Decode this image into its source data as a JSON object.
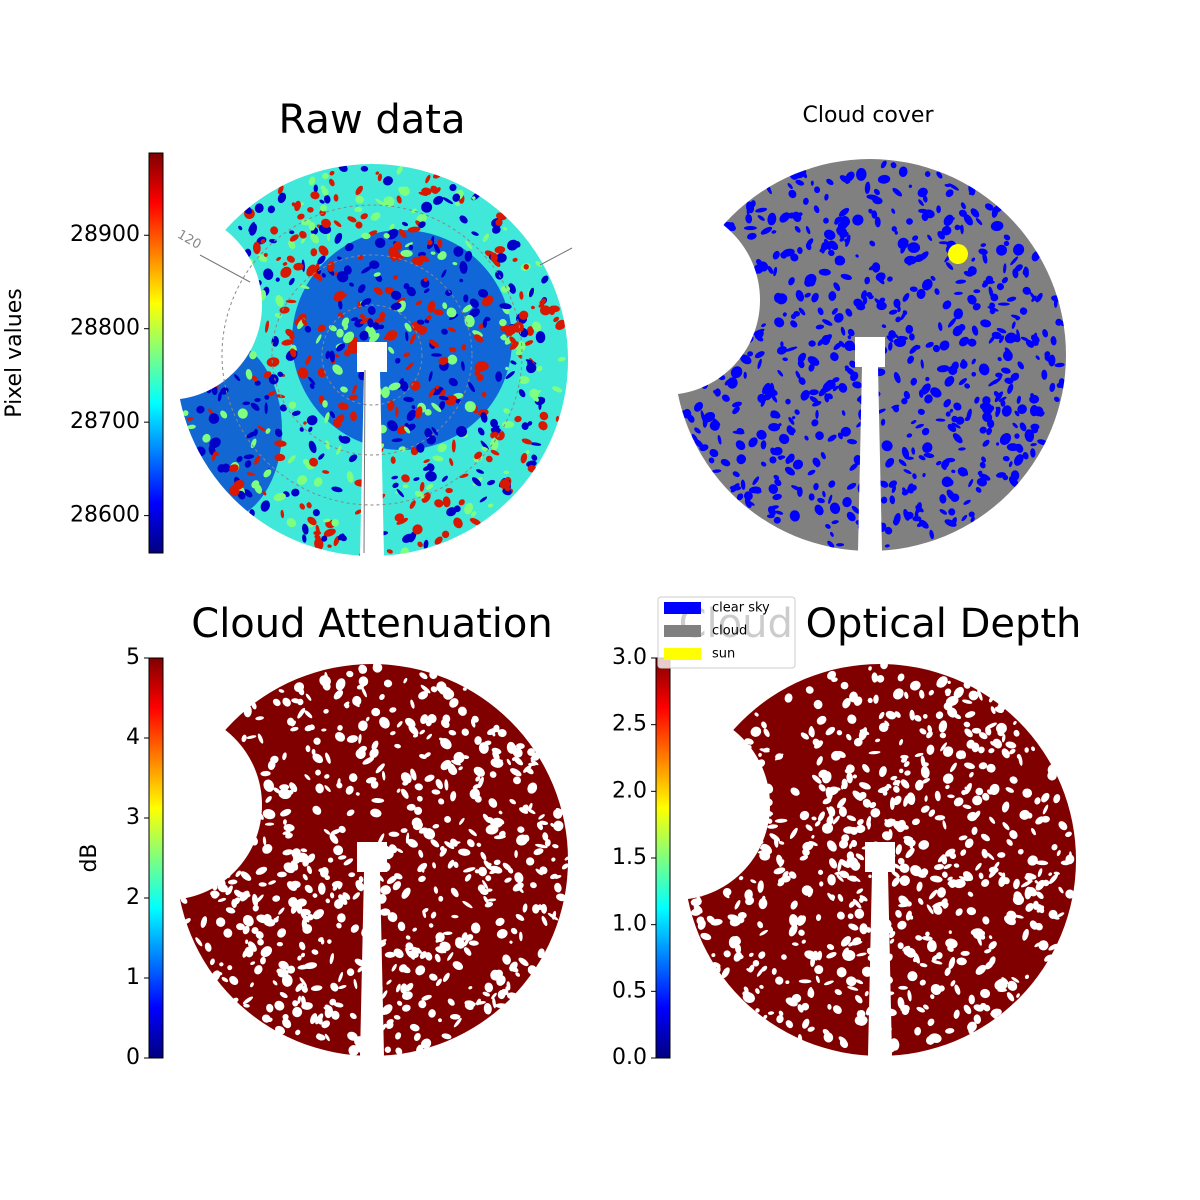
{
  "chart_data": [
    {
      "type": "image",
      "title": "Raw data",
      "colormap": "jet",
      "colorbar_label": "Pixel values",
      "clim": [
        28560,
        28988
      ],
      "cticks": [
        28600,
        28700,
        28800,
        28900
      ],
      "annotations": [
        "120"
      ]
    },
    {
      "type": "image",
      "title": "Cloud cover",
      "series": [
        {
          "name": "clear sky",
          "color": "#0000ff"
        },
        {
          "name": "cloud",
          "color": "#808080"
        },
        {
          "name": "sun",
          "color": "#ffff00"
        }
      ]
    },
    {
      "type": "image",
      "title": "Cloud Attenuation",
      "colormap": "jet",
      "colorbar_label": "dB",
      "clim": [
        0,
        5
      ],
      "cticks": [
        0,
        1,
        2,
        3,
        4,
        5
      ]
    },
    {
      "type": "image",
      "title": "Cloud Optical Depth",
      "colormap": "jet",
      "clim": [
        0,
        3
      ],
      "cticks": [
        {
          "value": 0,
          "label": "0.0"
        },
        {
          "value": 0.5,
          "label": "0.5"
        },
        {
          "value": 1,
          "label": "1.0"
        },
        {
          "value": 1.5,
          "label": "1.5"
        },
        {
          "value": 2,
          "label": "2.0"
        },
        {
          "value": 2.5,
          "label": "2.5"
        },
        {
          "value": 3,
          "label": "3.0"
        }
      ]
    }
  ]
}
